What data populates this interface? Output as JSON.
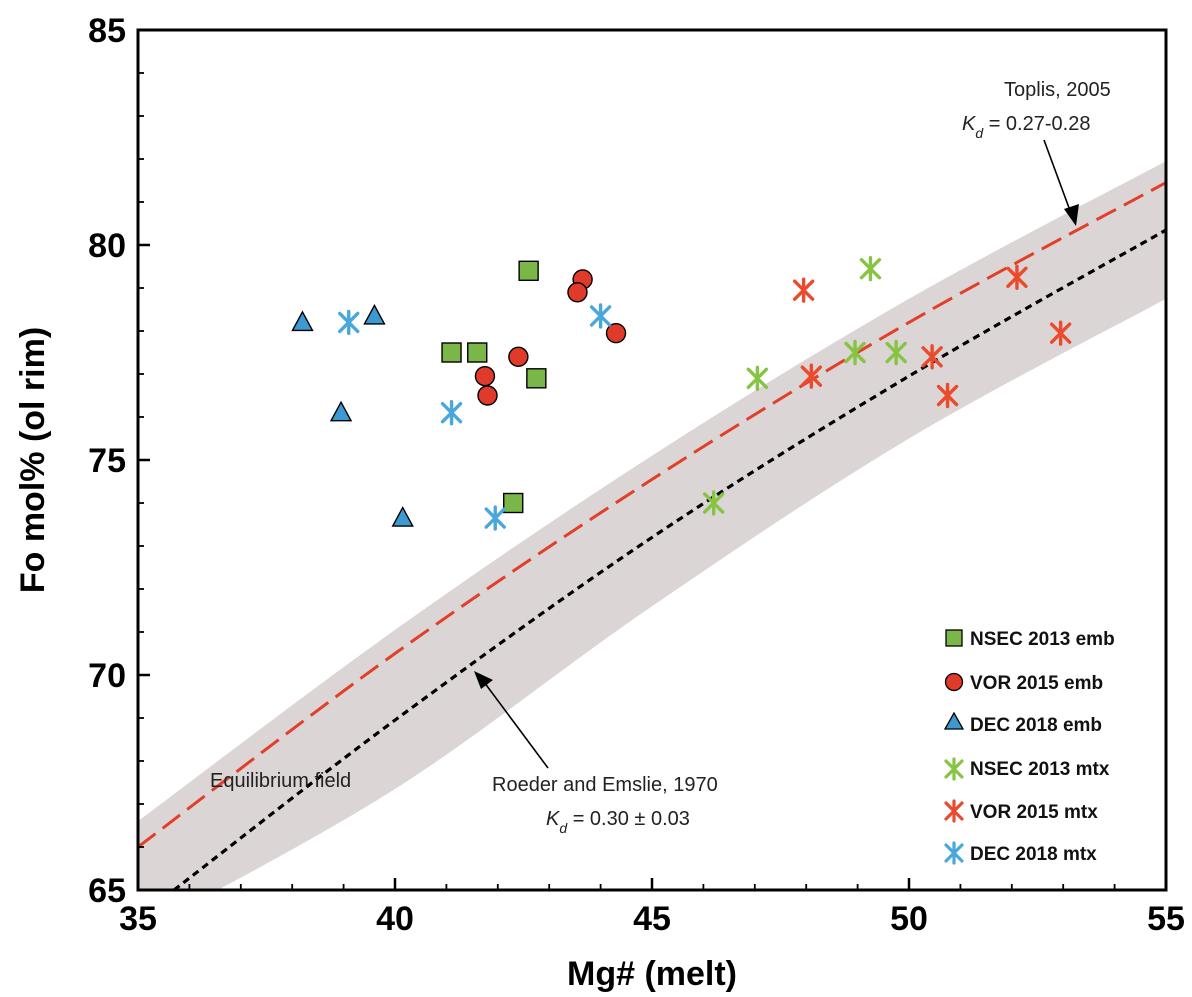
{
  "chart_data": {
    "type": "scatter",
    "xlabel": "Mg# (melt)",
    "ylabel": "Fo mol% (ol rim)",
    "xlim": [
      35,
      55
    ],
    "ylim": [
      65,
      85
    ],
    "xticks": [
      35,
      40,
      45,
      50,
      55
    ],
    "yticks": [
      65,
      70,
      75,
      80,
      85
    ],
    "grid": false,
    "legend_position": "bottom-right",
    "colors": {
      "nsec_emb": "#7ab648",
      "vor_emb": "#e03a2a",
      "dec_emb": "#3d9ad1",
      "nsec_mtx": "#86c443",
      "vor_mtx": "#ea4b2c",
      "dec_mtx": "#49a7dc",
      "equilibrium_band": "#dcd5d5",
      "toplis_line": "#e0402a",
      "roeder_line": "#000000"
    },
    "series": [
      {
        "name": "NSEC 2013 emb",
        "marker": "square",
        "color": "#7ab648",
        "x": [
          42.6,
          41.1,
          41.6,
          42.75,
          42.3
        ],
        "y": [
          79.4,
          77.5,
          77.5,
          76.9,
          74.0
        ]
      },
      {
        "name": "VOR 2015 emb",
        "marker": "circle",
        "color": "#e03a2a",
        "x": [
          43.65,
          43.55,
          44.3,
          42.4,
          41.75,
          41.8
        ],
        "y": [
          79.2,
          78.9,
          77.95,
          77.4,
          76.95,
          76.5
        ]
      },
      {
        "name": "DEC 2018 emb",
        "marker": "triangle",
        "color": "#3d9ad1",
        "x": [
          38.2,
          39.6,
          38.95,
          40.15
        ],
        "y": [
          78.2,
          78.35,
          76.1,
          73.65
        ]
      },
      {
        "name": "NSEC 2013 mtx",
        "marker": "asterisk",
        "color": "#86c443",
        "x": [
          49.25,
          48.95,
          49.75,
          47.05,
          46.2
        ],
        "y": [
          79.45,
          77.5,
          77.5,
          76.9,
          74.0
        ]
      },
      {
        "name": "VOR 2015 mtx",
        "marker": "asterisk",
        "color": "#ea4b2c",
        "x": [
          47.95,
          48.1,
          52.1,
          52.95,
          50.45,
          50.75
        ],
        "y": [
          78.95,
          76.95,
          79.25,
          77.95,
          77.4,
          76.5
        ]
      },
      {
        "name": "DEC 2018 mtx",
        "marker": "asterisk",
        "color": "#49a7dc",
        "x": [
          39.1,
          44.0,
          41.1,
          41.95
        ],
        "y": [
          78.2,
          78.35,
          76.1,
          73.65
        ]
      }
    ],
    "curves": [
      {
        "name": "Toplis, 2005",
        "style": "long-dash",
        "color": "#e0402a",
        "x": [
          35,
          40,
          45,
          50,
          55
        ],
        "y": [
          66.0,
          70.5,
          74.55,
          78.2,
          81.45
        ]
      },
      {
        "name": "Roeder and Emslie, 1970",
        "style": "short-dash",
        "color": "#000000",
        "x": [
          35.7,
          40,
          45,
          50,
          55
        ],
        "y": [
          65.0,
          68.95,
          73.2,
          76.95,
          80.35
        ]
      }
    ],
    "band": {
      "name": "Equilibrium field",
      "x": [
        35,
        40,
        45,
        50,
        55
      ],
      "upper": [
        66.6,
        71.05,
        75.1,
        78.75,
        81.95
      ],
      "lower": [
        64.0,
        67.35,
        71.6,
        75.5,
        78.75
      ]
    },
    "annotations": {
      "toplis_name": "Toplis, 2005",
      "toplis_kd_value": " = 0.27-0.28",
      "roeder_name": "Roeder and Emslie, 1970",
      "roeder_kd_value": " = 0.30 ± 0.03",
      "kd_symbol": "K",
      "kd_subscript": "d",
      "equilibrium_label": "Equilibrium field"
    },
    "legend": [
      "NSEC 2013 emb",
      "VOR 2015 emb",
      "DEC 2018 emb",
      "NSEC 2013 mtx",
      "VOR 2015 mtx",
      "DEC 2018 mtx"
    ]
  }
}
